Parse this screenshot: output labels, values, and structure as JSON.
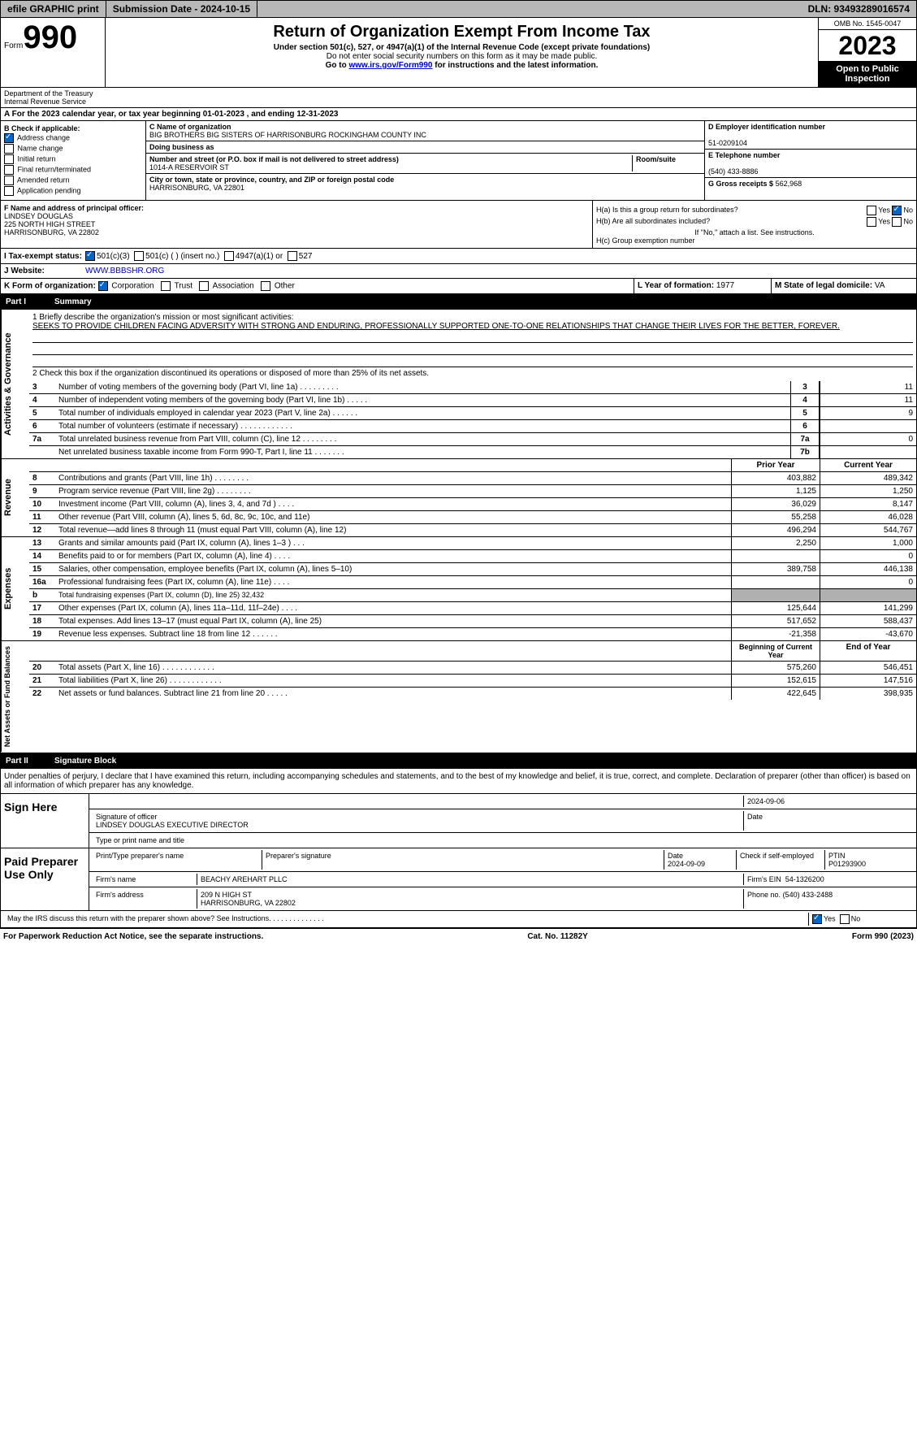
{
  "topbar": {
    "efile": "efile GRAPHIC print",
    "subdate_lbl": "Submission Date - 2024-10-15",
    "dln": "DLN: 93493289016574"
  },
  "header": {
    "form": "Form",
    "num": "990",
    "title": "Return of Organization Exempt From Income Tax",
    "sub1": "Under section 501(c), 527, or 4947(a)(1) of the Internal Revenue Code (except private foundations)",
    "sub2": "Do not enter social security numbers on this form as it may be made public.",
    "sub3": "Go to ",
    "link": "www.irs.gov/Form990",
    "sub4": " for instructions and the latest information.",
    "dept": "Department of the Treasury",
    "irs": "Internal Revenue Service",
    "omb": "OMB No. 1545-0047",
    "year": "2023",
    "pub": "Open to Public Inspection"
  },
  "rowA": {
    "text": "A For the 2023 calendar year, or tax year beginning 01-01-2023   , and ending 12-31-2023"
  },
  "colB": {
    "lbl": "B Check if applicable:",
    "items": [
      "Address change",
      "Name change",
      "Initial return",
      "Final return/terminated",
      "Amended return",
      "Application pending"
    ],
    "checked": [
      true,
      false,
      false,
      false,
      false,
      false
    ]
  },
  "colC": {
    "name_lbl": "C Name of organization",
    "name": "BIG BROTHERS BIG SISTERS OF HARRISONBURG ROCKINGHAM COUNTY INC",
    "dba_lbl": "Doing business as",
    "dba": "",
    "addr_lbl": "Number and street (or P.O. box if mail is not delivered to street address)",
    "room_lbl": "Room/suite",
    "addr": "1014-A RESERVOIR ST",
    "city_lbl": "City or town, state or province, country, and ZIP or foreign postal code",
    "city": "HARRISONBURG, VA  22801"
  },
  "colD": {
    "ein_lbl": "D Employer identification number",
    "ein": "51-0209104",
    "tel_lbl": "E Telephone number",
    "tel": "(540) 433-8886",
    "gross_lbl": "G Gross receipts $",
    "gross": "562,968"
  },
  "colF": {
    "lbl": "F  Name and address of principal officer:",
    "name": "LINDSEY DOUGLAS",
    "addr1": "225 NORTH HIGH STREET",
    "addr2": "HARRISONBURG, VA  22802"
  },
  "colH": {
    "a": "H(a)  Is this a group return for subordinates?",
    "a_yes": "Yes",
    "a_no": "No",
    "a_no_chk": true,
    "b": "H(b)  Are all subordinates included?",
    "b_note": "If \"No,\" attach a list. See instructions.",
    "c": "H(c)  Group exemption number"
  },
  "rowI": {
    "lbl": "I   Tax-exempt status:",
    "c3": "501(c)(3)",
    "c": "501(c) (  ) (insert no.)",
    "a": "4947(a)(1) or",
    "s": "527"
  },
  "rowJ": {
    "lbl": "J   Website:",
    "val": "WWW.BBBSHR.ORG"
  },
  "rowK": {
    "lbl": "K Form of organization:",
    "corp": "Corporation",
    "trust": "Trust",
    "assoc": "Association",
    "other": "Other"
  },
  "rowL": {
    "lbl": "L Year of formation:",
    "val": "1977"
  },
  "rowM": {
    "lbl": "M State of legal domicile:",
    "val": "VA"
  },
  "part1": {
    "num": "Part I",
    "title": "Summary"
  },
  "mission": {
    "q1": "1   Briefly describe the organization's mission or most significant activities:",
    "text": "SEEKS TO PROVIDE CHILDREN FACING ADVERSITY WITH STRONG AND ENDURING, PROFESSIONALLY SUPPORTED ONE-TO-ONE RELATIONSHIPS THAT CHANGE THEIR LIVES FOR THE BETTER, FOREVER.",
    "q2": "2   Check this box       if the organization discontinued its operations or disposed of more than 25% of its net assets."
  },
  "gov": {
    "tab": "Activities & Governance",
    "rows": [
      {
        "n": "3",
        "d": "Number of voting members of the governing body (Part VI, line 1a)   .    .    .    .    .    .    .    .    .",
        "b": "3",
        "v": "11"
      },
      {
        "n": "4",
        "d": "Number of independent voting members of the governing body (Part VI, line 1b)   .    .    .    .    .",
        "b": "4",
        "v": "11"
      },
      {
        "n": "5",
        "d": "Total number of individuals employed in calendar year 2023 (Part V, line 2a)   .    .    .    .    .    .",
        "b": "5",
        "v": "9"
      },
      {
        "n": "6",
        "d": "Total number of volunteers (estimate if necessary)    .    .    .    .    .    .    .    .    .    .    .    .",
        "b": "6",
        "v": ""
      },
      {
        "n": "7a",
        "d": "Total unrelated business revenue from Part VIII, column (C), line 12   .    .    .    .    .    .    .    .",
        "b": "7a",
        "v": "0"
      },
      {
        "n": "",
        "d": "Net unrelated business taxable income from Form 990-T, Part I, line 11   .    .    .    .    .    .    .",
        "b": "7b",
        "v": ""
      }
    ]
  },
  "rev": {
    "tab": "Revenue",
    "hdr": {
      "c1": "Prior Year",
      "c2": "Current Year"
    },
    "rows": [
      {
        "n": "8",
        "d": "Contributions and grants (Part VIII, line 1h)    .    .    .    .    .    .    .    .",
        "p": "403,882",
        "c": "489,342"
      },
      {
        "n": "9",
        "d": "Program service revenue (Part VIII, line 2g)    .    .    .    .    .    .    .    .",
        "p": "1,125",
        "c": "1,250"
      },
      {
        "n": "10",
        "d": "Investment income (Part VIII, column (A), lines 3, 4, and 7d )    .    .    .    .",
        "p": "36,029",
        "c": "8,147"
      },
      {
        "n": "11",
        "d": "Other revenue (Part VIII, column (A), lines 5, 6d, 8c, 9c, 10c, and 11e)",
        "p": "55,258",
        "c": "46,028"
      },
      {
        "n": "12",
        "d": "Total revenue—add lines 8 through 11 (must equal Part VIII, column (A), line 12)",
        "p": "496,294",
        "c": "544,767"
      }
    ]
  },
  "exp": {
    "tab": "Expenses",
    "rows": [
      {
        "n": "13",
        "d": "Grants and similar amounts paid (Part IX, column (A), lines 1–3 )    .    .    .",
        "p": "2,250",
        "c": "1,000"
      },
      {
        "n": "14",
        "d": "Benefits paid to or for members (Part IX, column (A), line 4)    .    .    .    .",
        "p": "",
        "c": "0"
      },
      {
        "n": "15",
        "d": "Salaries, other compensation, employee benefits (Part IX, column (A), lines 5–10)",
        "p": "389,758",
        "c": "446,138"
      },
      {
        "n": "16a",
        "d": "Professional fundraising fees (Part IX, column (A), line 11e)    .    .    .    .",
        "p": "",
        "c": "0"
      },
      {
        "n": "b",
        "d": "Total fundraising expenses (Part IX, column (D), line 25) 32,432",
        "grey": true
      },
      {
        "n": "17",
        "d": "Other expenses (Part IX, column (A), lines 11a–11d, 11f–24e)    .    .    .    .",
        "p": "125,644",
        "c": "141,299"
      },
      {
        "n": "18",
        "d": "Total expenses. Add lines 13–17 (must equal Part IX, column (A), line 25)",
        "p": "517,652",
        "c": "588,437"
      },
      {
        "n": "19",
        "d": "Revenue less expenses. Subtract line 18 from line 12    .    .    .    .    .    .",
        "p": "-21,358",
        "c": "-43,670"
      }
    ]
  },
  "net": {
    "tab": "Net Assets or Fund Balances",
    "hdr": {
      "c1": "Beginning of Current Year",
      "c2": "End of Year"
    },
    "rows": [
      {
        "n": "20",
        "d": "Total assets (Part X, line 16)    .    .    .    .    .    .    .    .    .    .    .    .",
        "p": "575,260",
        "c": "546,451"
      },
      {
        "n": "21",
        "d": "Total liabilities (Part X, line 26)    .    .    .    .    .    .    .    .    .    .    .    .",
        "p": "152,615",
        "c": "147,516"
      },
      {
        "n": "22",
        "d": "Net assets or fund balances. Subtract line 21 from line 20    .    .    .    .    .",
        "p": "422,645",
        "c": "398,935"
      }
    ]
  },
  "part2": {
    "num": "Part II",
    "title": "Signature Block"
  },
  "sig": {
    "decl": "Under penalties of perjury, I declare that I have examined this return, including accompanying schedules and statements, and to the best of my knowledge and belief, it is true, correct, and complete. Declaration of preparer (other than officer) is based on all information of which preparer has any knowledge.",
    "here": "Sign Here",
    "date": "2024-09-06",
    "officer_lbl": "Signature of officer",
    "officer": "LINDSEY DOUGLAS  EXECUTIVE DIRECTOR",
    "type_lbl": "Type or print name and title",
    "paid": "Paid Preparer Use Only",
    "prep_name_lbl": "Print/Type preparer's name",
    "prep_sig_lbl": "Preparer's signature",
    "prep_date_lbl": "Date",
    "prep_date": "2024-09-09",
    "self_lbl": "Check       if self-employed",
    "ptin_lbl": "PTIN",
    "ptin": "P01293900",
    "firm_name_lbl": "Firm's name",
    "firm_name": "BEACHY AREHART PLLC",
    "firm_ein_lbl": "Firm's EIN",
    "firm_ein": "54-1326200",
    "firm_addr_lbl": "Firm's address",
    "firm_addr": "209 N HIGH ST",
    "firm_city": "HARRISONBURG, VA  22802",
    "firm_phone_lbl": "Phone no.",
    "firm_phone": "(540) 433-2488",
    "discuss": "May the IRS discuss this return with the preparer shown above? See Instructions.    .    .    .    .    .    .    .    .    .    .    .    .    .",
    "yes": "Yes",
    "no": "No"
  },
  "footer": {
    "l": "For Paperwork Reduction Act Notice, see the separate instructions.",
    "c": "Cat. No. 11282Y",
    "r": "Form 990 (2023)"
  }
}
